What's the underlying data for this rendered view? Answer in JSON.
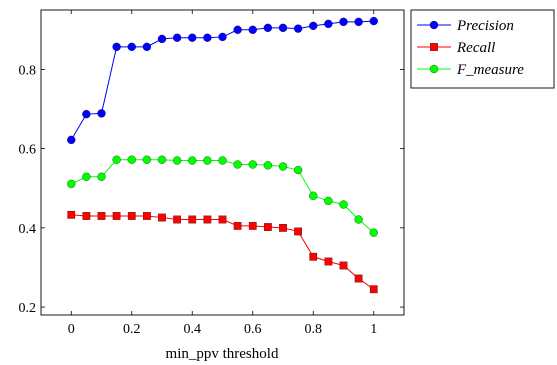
{
  "chart_data": {
    "type": "line",
    "xlabel": "min_ppv threshold",
    "ylabel": "",
    "xlim": [
      -0.1,
      1.1
    ],
    "ylim": [
      0.18,
      0.95
    ],
    "xticks": [
      0,
      0.2,
      0.4,
      0.6,
      0.8,
      1
    ],
    "xtick_labels": [
      "0",
      "0.2",
      "0.4",
      "0.6",
      "0.8",
      "1"
    ],
    "yticks": [
      0.2,
      0.4,
      0.6,
      0.8
    ],
    "ytick_labels": [
      "0.2",
      "0.4",
      "0.6",
      "0.8"
    ],
    "grid": false,
    "legend_position": "outside top-right",
    "x": [
      0,
      0.05,
      0.1,
      0.15,
      0.2,
      0.25,
      0.3,
      0.35,
      0.4,
      0.45,
      0.5,
      0.55,
      0.6,
      0.65,
      0.7,
      0.75,
      0.8,
      0.85,
      0.9,
      0.95,
      1
    ],
    "series": [
      {
        "name": "Precision",
        "marker": "circle",
        "color": "#0000ff",
        "values": [
          0.622,
          0.687,
          0.689,
          0.857,
          0.857,
          0.857,
          0.877,
          0.88,
          0.88,
          0.88,
          0.882,
          0.9,
          0.9,
          0.905,
          0.905,
          0.903,
          0.91,
          0.915,
          0.92,
          0.92,
          0.922
        ]
      },
      {
        "name": "Recall",
        "marker": "square",
        "color": "#ff0000",
        "values": [
          0.433,
          0.43,
          0.43,
          0.43,
          0.43,
          0.43,
          0.426,
          0.421,
          0.421,
          0.421,
          0.421,
          0.405,
          0.405,
          0.402,
          0.4,
          0.391,
          0.327,
          0.315,
          0.305,
          0.272,
          0.245
        ]
      },
      {
        "name": "F_measure",
        "marker": "circle",
        "color": "#00ff00",
        "values": [
          0.511,
          0.529,
          0.529,
          0.572,
          0.572,
          0.572,
          0.572,
          0.57,
          0.57,
          0.57,
          0.57,
          0.56,
          0.56,
          0.558,
          0.555,
          0.546,
          0.481,
          0.468,
          0.459,
          0.421,
          0.388
        ]
      }
    ]
  }
}
